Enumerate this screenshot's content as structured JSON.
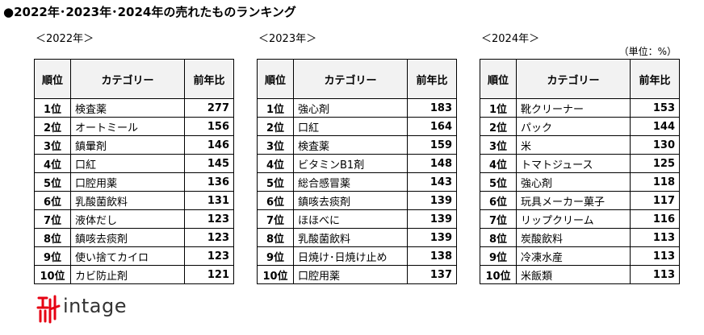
{
  "title": "●2022年･2023年･2024年の売れたものランキング",
  "unit": "（単位：%）",
  "logo": "intage",
  "tables": [
    {
      "caption": "＜2022年＞",
      "headers": [
        "順位",
        "カテゴリー",
        "前年比"
      ],
      "rows": [
        [
          "1位",
          "検査薬",
          277
        ],
        [
          "2位",
          "オートミール",
          156
        ],
        [
          "3位",
          "鎮暈剤",
          146
        ],
        [
          "4位",
          "口紅",
          145
        ],
        [
          "5位",
          "口腔用薬",
          136
        ],
        [
          "6位",
          "乳酸菌飲料",
          131
        ],
        [
          "7位",
          "液体だし",
          123
        ],
        [
          "8位",
          "鎮咳去痰剤",
          123
        ],
        [
          "9位",
          "使い捨てカイロ",
          123
        ],
        [
          "10位",
          "カビ防止剤",
          121
        ]
      ]
    },
    {
      "caption": "＜2023年＞",
      "headers": [
        "順位",
        "カテゴリー",
        "前年比"
      ],
      "rows": [
        [
          "1位",
          "強心剤",
          183
        ],
        [
          "2位",
          "口紅",
          164
        ],
        [
          "3位",
          "検査薬",
          159
        ],
        [
          "4位",
          "ビタミンB1剤",
          148
        ],
        [
          "5位",
          "総合感冒薬",
          143
        ],
        [
          "6位",
          "鎮咳去痰剤",
          139
        ],
        [
          "7位",
          "ほほべに",
          139
        ],
        [
          "8位",
          "乳酸菌飲料",
          139
        ],
        [
          "9位",
          "日焼け･日焼け止め",
          138
        ],
        [
          "10位",
          "口腔用薬",
          137
        ]
      ]
    },
    {
      "caption": "＜2024年＞",
      "headers": [
        "順位",
        "カテゴリー",
        "前年比"
      ],
      "rows": [
        [
          "1位",
          "靴クリーナー",
          153
        ],
        [
          "2位",
          "パック",
          144
        ],
        [
          "3位",
          "米",
          130
        ],
        [
          "4位",
          "トマトジュース",
          125
        ],
        [
          "5位",
          "強心剤",
          118
        ],
        [
          "6位",
          "玩具メーカー菓子",
          117
        ],
        [
          "7位",
          "リップクリーム",
          116
        ],
        [
          "8位",
          "炭酸飲料",
          113
        ],
        [
          "9位",
          "冷凍水産",
          113
        ],
        [
          "10位",
          "米飯類",
          113
        ]
      ]
    }
  ]
}
